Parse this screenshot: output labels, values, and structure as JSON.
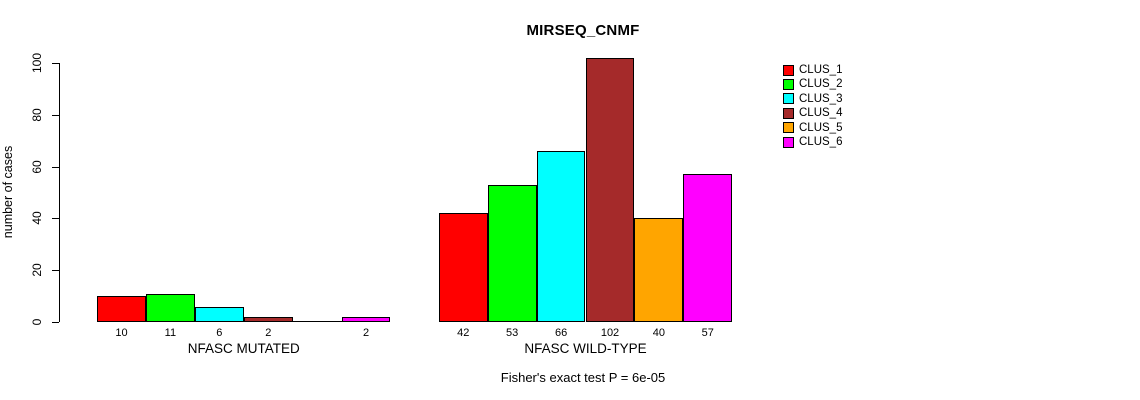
{
  "chart": {
    "title": "MIRSEQ_CNMF",
    "ylabel": "number of cases",
    "caption": "Fisher's exact test P = 6e-05"
  },
  "chart_data": {
    "type": "bar",
    "title": "MIRSEQ_CNMF",
    "xlabel": "",
    "ylabel": "number of cases",
    "ylim": [
      0,
      102
    ],
    "yticks": [
      0,
      20,
      40,
      60,
      80,
      100
    ],
    "grid": false,
    "categories": [
      "NFASC MUTATED",
      "NFASC WILD-TYPE"
    ],
    "series": [
      {
        "name": "CLUS_1",
        "color": "#ff0000",
        "values": [
          10,
          42
        ]
      },
      {
        "name": "CLUS_2",
        "color": "#00ff00",
        "values": [
          11,
          53
        ]
      },
      {
        "name": "CLUS_3",
        "color": "#00ffff",
        "values": [
          6,
          66
        ]
      },
      {
        "name": "CLUS_4",
        "color": "#a52a2a",
        "values": [
          2,
          102
        ]
      },
      {
        "name": "CLUS_5",
        "color": "#ffa500",
        "values": [
          0,
          40
        ]
      },
      {
        "name": "CLUS_6",
        "color": "#ff00ff",
        "values": [
          2,
          57
        ]
      }
    ],
    "groups": [
      {
        "label": "NFASC MUTATED",
        "values": [
          10,
          11,
          6,
          2,
          0,
          2
        ],
        "value_labels": [
          "10",
          "11",
          "6",
          "2",
          "",
          "2"
        ]
      },
      {
        "label": "NFASC WILD-TYPE",
        "values": [
          42,
          53,
          66,
          102,
          40,
          57
        ],
        "value_labels": [
          "42",
          "53",
          "66",
          "102",
          "40",
          "57"
        ]
      }
    ],
    "legend": {
      "position": "right",
      "entries": [
        "CLUS_1",
        "CLUS_2",
        "CLUS_3",
        "CLUS_4",
        "CLUS_5",
        "CLUS_6"
      ]
    },
    "annotation": "Fisher's exact test P = 6e-05"
  }
}
